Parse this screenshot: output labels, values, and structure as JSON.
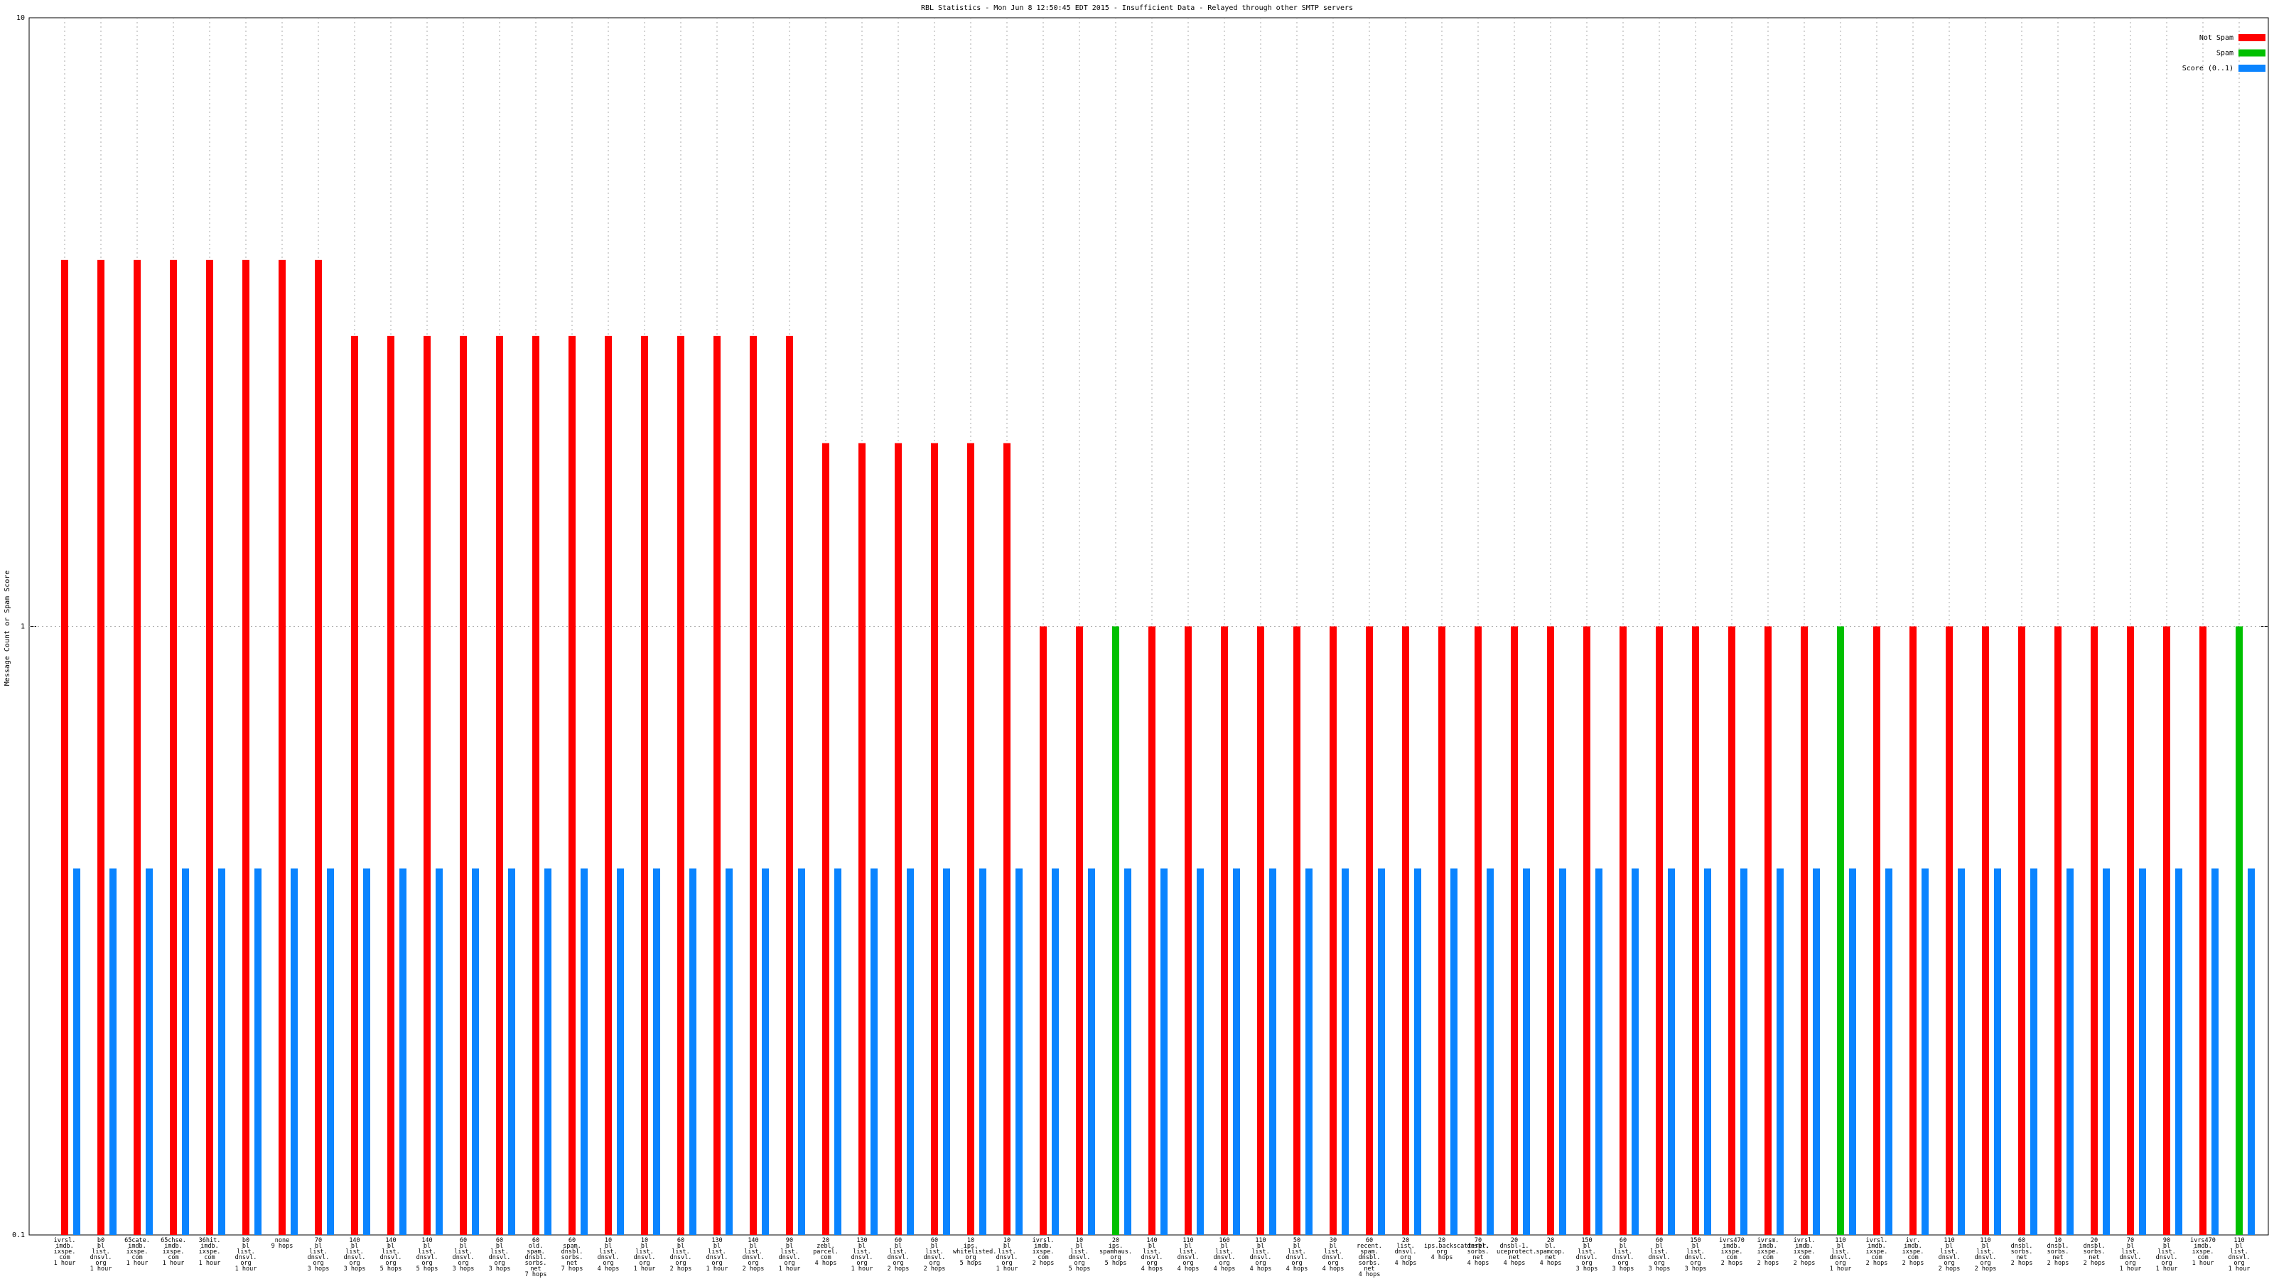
{
  "chart_data": {
    "type": "bar",
    "title": "RBL Statistics - Mon Jun  8 12:50:45 EDT 2015 - Insufficient Data - Relayed through other SMTP servers",
    "y_label": "Message Count or Spam Score",
    "y_scale": "log",
    "ylim": [
      0.1,
      10
    ],
    "yticks": [
      0.1,
      1,
      10
    ],
    "grid": true,
    "legend_position": "top-right",
    "categories": [
      "ivrsl.\nimdb.\nixspe.\ncom\n1 hour",
      "b0\nbl\nlist.\ndnsvl.\norg\n1 hour",
      "65cate.\nimdb.\nixspe.\ncom\n1 hour",
      "65chse.\nimdb.\nixspe.\ncom\n1 hour",
      "36hit.\nimdb.\nixspe.\ncom\n1 hour",
      "b0\nbl\nlist.\ndnsvl.\norg\n1 hour",
      "none\n9 hops",
      "70\nbl\nlist.\ndnsvl.\norg\n3 hops",
      "140\nbl\nlist.\ndnsvl.\norg\n3 hops",
      "140\nbl\nlist.\ndnsvl.\norg\n5 hops",
      "140\nbl\nlist.\ndnsvl.\norg\n5 hops",
      "60\nbl\nlist.\ndnsvl.\norg\n3 hops",
      "60\nbl\nlist.\ndnsvl.\norg\n3 hops",
      "60\nold.\nspam.\ndnsbl.\nsorbs.\nnet\n7 hops",
      "60\nspam.\ndnsbl.\nsorbs.\nnet\n7 hops",
      "10\nbl\nlist.\ndnsvl.\norg\n4 hops",
      "10\nbl\nlist.\ndnsvl.\norg\n1 hour",
      "60\nbl\nlist.\ndnsvl.\norg\n2 hops",
      "130\nbl\nlist.\ndnsvl.\norg\n1 hour",
      "140\nbl\nlist.\ndnsvl.\norg\n2 hops",
      "90\nbl\nlist.\ndnsvl.\norg\n1 hour",
      "20\nzebl.\nparcel.\ncom\n4 hops",
      "130\nbl\nlist.\ndnsvl.\norg\n1 hour",
      "60\nbl\nlist.\ndnsvl.\norg\n2 hops",
      "60\nbl\nlist.\ndnsvl.\norg\n2 hops",
      "10\nips.\nwhitelisted.\norg\n5 hops",
      "10\nbl\nlist.\ndnsvl.\norg\n1 hour",
      "ivrsl.\nimdb.\nixspe.\ncom\n2 hops",
      "10\nbl\nlist.\ndnsvl.\norg\n5 hops",
      "20\nips.\nspamhaus.\norg\n5 hops",
      "140\nbl\nlist.\ndnsvl.\norg\n4 hops",
      "110\nbl\nlist.\ndnsvl.\norg\n4 hops",
      "160\nbl\nlist.\ndnsvl.\norg\n4 hops",
      "110\nbl\nlist.\ndnsvl.\norg\n4 hops",
      "50\nbl\nlist.\ndnsvl.\norg\n4 hops",
      "30\nbl\nlist.\ndnsvl.\norg\n4 hops",
      "60\nrecent.\nspam.\ndnsbl.\nsorbs.\nnet\n4 hops",
      "20\nlist.\ndnsvl.\norg\n4 hops",
      "20\nips.backscatterer.\norg\n4 hops",
      "70\ndnsbl.\nsorbs.\nnet\n4 hops",
      "20\ndnsbl-1.\nuceprotect.\nnet\n4 hops",
      "20\nbl.\nspamcop.\nnet\n4 hops",
      "150\nbl\nlist.\ndnsvl.\norg\n3 hops",
      "60\nbl\nlist.\ndnsvl.\norg\n3 hops",
      "60\nbl\nlist.\ndnsvl.\norg\n3 hops",
      "150\nbl\nlist.\ndnsvl.\norg\n3 hops",
      "ivrs470\nimdb.\nixspe.\ncom\n2 hops",
      "ivrsm.\nimdb.\nixspe.\ncom\n2 hops",
      "ivrsl.\nimdb.\nixspe.\ncom\n2 hops",
      "110\nbl\nlist.\ndnsvl.\norg\n1 hour",
      "ivrsl.\nimdb.\nixspe.\ncom\n2 hops",
      "ivr.\nimdb.\nixspe.\ncom\n2 hops",
      "110\nbl\nlist.\ndnsvl.\norg\n2 hops",
      "110\nbl\nlist.\ndnsvl.\norg\n2 hops",
      "60\ndnsbl.\nsorbs.\nnet\n2 hops",
      "10\ndnsbl.\nsorbs.\nnet\n2 hops",
      "20\ndnsbl.\nsorbs.\nnet\n2 hops",
      "70\nbl\nlist.\ndnsvl.\norg\n1 hour",
      "90\nbl\nlist.\ndnsvl.\norg\n1 hour",
      "ivrs470\nimdb.\nixspe.\ncom\n1 hour",
      "110\nbl\nlist.\ndnsvl.\norg\n1 hour"
    ],
    "series": [
      {
        "name": "Not Spam",
        "color": "#ff0000",
        "values": [
          4,
          4,
          4,
          4,
          4,
          4,
          4,
          4,
          3,
          3,
          3,
          3,
          3,
          3,
          3,
          3,
          3,
          3,
          3,
          3,
          3,
          2,
          2,
          2,
          2,
          2,
          2,
          1,
          1,
          null,
          1,
          1,
          1,
          1,
          1,
          1,
          1,
          1,
          1,
          1,
          1,
          1,
          1,
          1,
          1,
          1,
          1,
          1,
          1,
          null,
          1,
          1,
          1,
          1,
          1,
          1,
          1,
          1,
          1,
          1,
          null
        ]
      },
      {
        "name": "Spam",
        "color": "#00c000",
        "values": [
          null,
          null,
          null,
          null,
          null,
          null,
          null,
          null,
          null,
          null,
          null,
          null,
          null,
          null,
          null,
          null,
          null,
          null,
          null,
          null,
          null,
          null,
          null,
          null,
          null,
          null,
          null,
          null,
          null,
          1,
          null,
          null,
          null,
          null,
          null,
          null,
          null,
          null,
          null,
          null,
          null,
          null,
          null,
          null,
          null,
          null,
          null,
          null,
          null,
          1,
          null,
          null,
          null,
          null,
          null,
          null,
          null,
          null,
          null,
          null,
          1
        ]
      },
      {
        "name": "Score (0..1)",
        "color": "#0a84ff",
        "values": [
          0.4,
          0.4,
          0.4,
          0.4,
          0.4,
          0.4,
          0.4,
          0.4,
          0.4,
          0.4,
          0.4,
          0.4,
          0.4,
          0.4,
          0.4,
          0.4,
          0.4,
          0.4,
          0.4,
          0.4,
          0.4,
          0.4,
          0.4,
          0.4,
          0.4,
          0.4,
          0.4,
          0.4,
          0.4,
          0.4,
          0.4,
          0.4,
          0.4,
          0.4,
          0.4,
          0.4,
          0.4,
          0.4,
          0.4,
          0.4,
          0.4,
          0.4,
          0.4,
          0.4,
          0.4,
          0.4,
          0.4,
          0.4,
          0.4,
          0.4,
          0.4,
          0.4,
          0.4,
          0.4,
          0.4,
          0.4,
          0.4,
          0.4,
          0.4,
          0.4,
          0.4
        ]
      }
    ]
  }
}
